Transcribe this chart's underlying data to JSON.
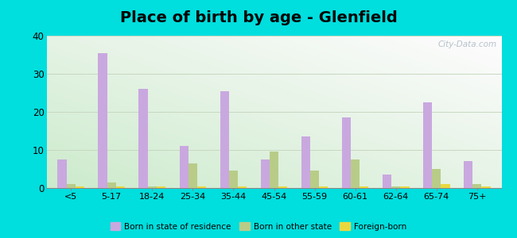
{
  "title": "Place of birth by age - Glenfield",
  "categories": [
    "<5",
    "5-17",
    "18-24",
    "25-34",
    "35-44",
    "45-54",
    "55-59",
    "60-61",
    "62-64",
    "65-74",
    "75+"
  ],
  "born_in_state": [
    7.5,
    35.5,
    26.0,
    11.0,
    25.5,
    7.5,
    13.5,
    18.5,
    3.5,
    22.5,
    7.0
  ],
  "born_other_state": [
    1.0,
    1.5,
    0.5,
    6.5,
    4.5,
    9.5,
    4.5,
    7.5,
    0.5,
    5.0,
    1.0
  ],
  "foreign_born": [
    0.5,
    0.5,
    0.5,
    0.5,
    0.5,
    0.5,
    0.5,
    0.5,
    0.5,
    1.0,
    0.5
  ],
  "bar_color_state": "#c9a8df",
  "bar_color_other": "#b8cc88",
  "bar_color_foreign": "#e8d840",
  "ylim": [
    0,
    40
  ],
  "yticks": [
    0,
    10,
    20,
    30,
    40
  ],
  "outer_background": "#00dede",
  "grid_color": "#c8d8c0",
  "title_fontsize": 14,
  "legend_labels": [
    "Born in state of residence",
    "Born in other state",
    "Foreign-born"
  ],
  "watermark": "City-Data.com"
}
